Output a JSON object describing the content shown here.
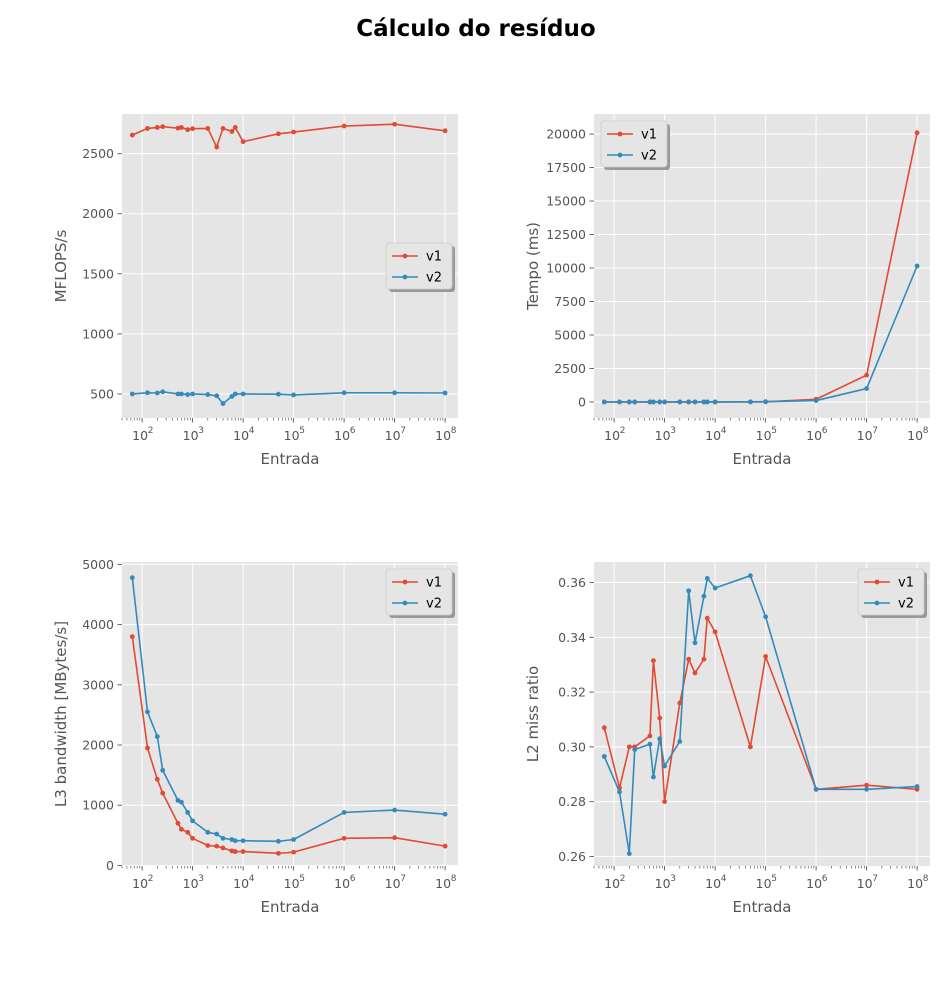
{
  "figure": {
    "title": "Cálculo do resíduo"
  },
  "colors": {
    "v1": "#e24a33",
    "v2": "#348abd",
    "panel": "#e5e5e5",
    "grid": "#ffffff",
    "text": "#555555"
  },
  "chart_data": [
    {
      "type": "line",
      "xlabel": "Entrada",
      "ylabel": "MFLOPS/s",
      "xscale": "log",
      "xlim": [
        40,
        180000000
      ],
      "ylim": [
        300,
        2830
      ],
      "yticks": [
        500,
        1000,
        1500,
        2000,
        2500
      ],
      "ytick_labels": [
        "500",
        "1000",
        "1500",
        "2000",
        "2500"
      ],
      "xticks": [
        100,
        1000,
        10000,
        100000,
        1000000,
        10000000,
        100000000
      ],
      "xtick_labels": [
        "10",
        "10",
        "10",
        "10",
        "10",
        "10",
        "10"
      ],
      "xtick_exponents": [
        "2",
        "3",
        "4",
        "5",
        "6",
        "7",
        "8"
      ],
      "grid": true,
      "legend": "center-right",
      "x": [
        64,
        128,
        200,
        256,
        512,
        600,
        800,
        1000,
        2000,
        3000,
        4000,
        6000,
        7000,
        10000,
        50000,
        100000,
        1000000,
        10000000,
        100000000
      ],
      "series": [
        {
          "name": "v1",
          "values": [
            2655,
            2710,
            2718,
            2725,
            2712,
            2718,
            2700,
            2708,
            2710,
            2555,
            2710,
            2685,
            2718,
            2600,
            2665,
            2680,
            2730,
            2745,
            2690
          ]
        },
        {
          "name": "v2",
          "values": [
            500,
            510,
            508,
            518,
            500,
            500,
            495,
            500,
            495,
            485,
            420,
            480,
            500,
            500,
            498,
            492,
            510,
            510,
            508
          ]
        }
      ]
    },
    {
      "type": "line",
      "xlabel": "Entrada",
      "ylabel": "Tempo (ms)",
      "xscale": "log",
      "xlim": [
        40,
        180000000
      ],
      "ylim": [
        -1200,
        21500
      ],
      "yticks": [
        0,
        2500,
        5000,
        7500,
        10000,
        12500,
        15000,
        17500,
        20000
      ],
      "ytick_labels": [
        "0",
        "2500",
        "5000",
        "7500",
        "10000",
        "12500",
        "15000",
        "17500",
        "20000"
      ],
      "xticks": [
        100,
        1000,
        10000,
        100000,
        1000000,
        10000000,
        100000000
      ],
      "xtick_labels": [
        "10",
        "10",
        "10",
        "10",
        "10",
        "10",
        "10"
      ],
      "xtick_exponents": [
        "2",
        "3",
        "4",
        "5",
        "6",
        "7",
        "8"
      ],
      "grid": true,
      "legend": "upper-left",
      "x": [
        64,
        128,
        200,
        256,
        512,
        600,
        800,
        1000,
        2000,
        3000,
        4000,
        6000,
        7000,
        10000,
        50000,
        100000,
        1000000,
        10000000,
        100000000
      ],
      "series": [
        {
          "name": "v1",
          "values": [
            0,
            0,
            0,
            0,
            0,
            0,
            0,
            0,
            0,
            0,
            0,
            0,
            0,
            0,
            2,
            5,
            200,
            2000,
            20100
          ]
        },
        {
          "name": "v2",
          "values": [
            0,
            0,
            0,
            0,
            0,
            0,
            0,
            0,
            0,
            0,
            0,
            0,
            0,
            0,
            5,
            20,
            100,
            1000,
            10150
          ]
        }
      ]
    },
    {
      "type": "line",
      "xlabel": "Entrada",
      "ylabel": "L3 bandwidth [MBytes/s]",
      "xscale": "log",
      "xlim": [
        40,
        180000000
      ],
      "ylim": [
        -10,
        5040
      ],
      "yticks": [
        0,
        1000,
        2000,
        3000,
        4000,
        5000
      ],
      "ytick_labels": [
        "0",
        "1000",
        "2000",
        "3000",
        "4000",
        "5000"
      ],
      "xticks": [
        100,
        1000,
        10000,
        100000,
        1000000,
        10000000,
        100000000
      ],
      "xtick_labels": [
        "10",
        "10",
        "10",
        "10",
        "10",
        "10",
        "10"
      ],
      "xtick_exponents": [
        "2",
        "3",
        "4",
        "5",
        "6",
        "7",
        "8"
      ],
      "grid": true,
      "legend": "upper-right",
      "x": [
        64,
        128,
        200,
        256,
        512,
        600,
        800,
        1000,
        2000,
        3000,
        4000,
        6000,
        7000,
        10000,
        50000,
        100000,
        1000000,
        10000000,
        100000000
      ],
      "series": [
        {
          "name": "v1",
          "values": [
            3800,
            1950,
            1430,
            1200,
            700,
            600,
            550,
            450,
            330,
            320,
            290,
            240,
            230,
            230,
            200,
            220,
            450,
            460,
            320
          ]
        },
        {
          "name": "v2",
          "values": [
            4780,
            2550,
            2140,
            1580,
            1080,
            1050,
            880,
            740,
            550,
            520,
            450,
            430,
            410,
            410,
            400,
            430,
            880,
            920,
            850
          ]
        }
      ]
    },
    {
      "type": "line",
      "xlabel": "Entrada",
      "ylabel": "L2 miss ratio",
      "xscale": "log",
      "xlim": [
        40,
        180000000
      ],
      "ylim": [
        0.2565,
        0.3675
      ],
      "yticks": [
        0.26,
        0.28,
        0.3,
        0.32,
        0.34,
        0.36
      ],
      "ytick_labels": [
        "0.26",
        "0.28",
        "0.30",
        "0.32",
        "0.34",
        "0.36"
      ],
      "xticks": [
        100,
        1000,
        10000,
        100000,
        1000000,
        10000000,
        100000000
      ],
      "xtick_labels": [
        "10",
        "10",
        "10",
        "10",
        "10",
        "10",
        "10"
      ],
      "xtick_exponents": [
        "2",
        "3",
        "4",
        "5",
        "6",
        "7",
        "8"
      ],
      "grid": true,
      "legend": "upper-right",
      "x": [
        64,
        128,
        200,
        256,
        512,
        600,
        800,
        1000,
        2000,
        3000,
        4000,
        6000,
        7000,
        10000,
        50000,
        100000,
        1000000,
        10000000,
        100000000
      ],
      "series": [
        {
          "name": "v1",
          "values": [
            0.307,
            0.285,
            0.3,
            0.3,
            0.304,
            0.3315,
            0.3105,
            0.28,
            0.316,
            0.332,
            0.327,
            0.332,
            0.347,
            0.342,
            0.3,
            0.333,
            0.2845,
            0.286,
            0.2845
          ]
        },
        {
          "name": "v2",
          "values": [
            0.2965,
            0.2835,
            0.261,
            0.299,
            0.301,
            0.289,
            0.303,
            0.293,
            0.302,
            0.357,
            0.338,
            0.355,
            0.3615,
            0.358,
            0.3625,
            0.3475,
            0.2845,
            0.2845,
            0.2855
          ]
        }
      ]
    }
  ]
}
